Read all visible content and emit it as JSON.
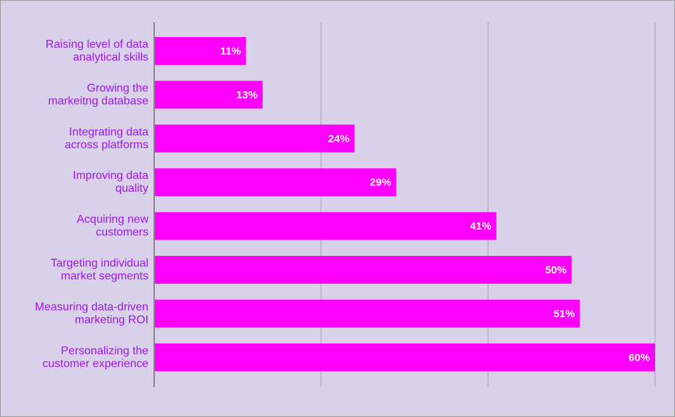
{
  "colors": {
    "background": "#d9d0ea",
    "bar": "#ff00ff",
    "category_text": "#9b17e8",
    "value_text": "#ffffff",
    "gridline": "#a79fb8",
    "axis": "#555555"
  },
  "chart_data": {
    "type": "bar",
    "orientation": "horizontal",
    "title": "",
    "xlabel": "",
    "ylabel": "",
    "xlim": [
      0,
      60
    ],
    "grid": true,
    "legend": "none",
    "value_suffix": "%",
    "categories": [
      [
        "Raising level of data",
        "analytical skills"
      ],
      [
        "Growing the",
        "markeitng database"
      ],
      [
        "Integrating data",
        "across platforms"
      ],
      [
        "Improving data",
        "quality"
      ],
      [
        "Acquiring new",
        "customers"
      ],
      [
        "Targeting individual",
        "market segments"
      ],
      [
        "Measuring data-driven",
        "marketing ROI"
      ],
      [
        "Personalizing the",
        "customer experience"
      ]
    ],
    "values": [
      11,
      13,
      24,
      29,
      41,
      50,
      51,
      60
    ],
    "value_labels": [
      "11%",
      "13%",
      "24%",
      "29%",
      "41%",
      "50%",
      "51%",
      "60%"
    ]
  }
}
